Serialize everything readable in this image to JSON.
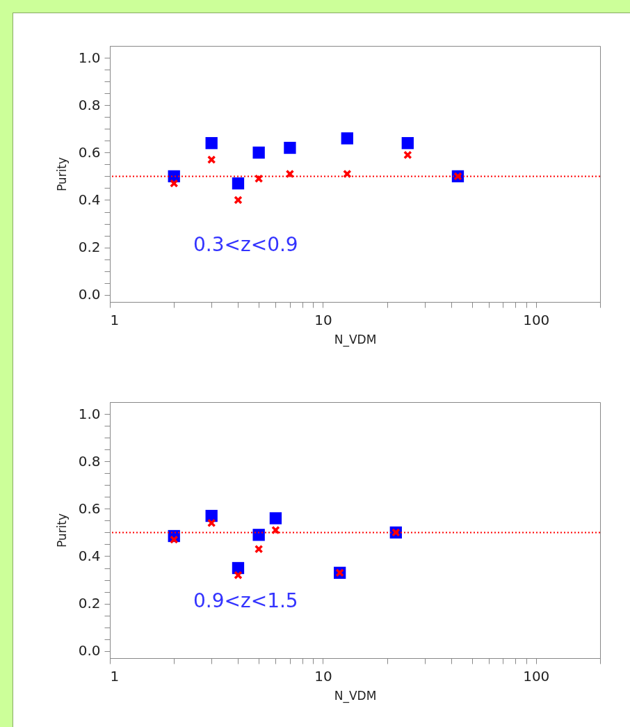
{
  "chart_data": [
    {
      "type": "scatter",
      "xlabel": "N_VDM",
      "ylabel": "Purity",
      "log": "x",
      "xlim": [
        1,
        200
      ],
      "ylim": [
        -0.03,
        1.05
      ],
      "xticks": [
        1,
        {
          "value": 2,
          "label": null
        },
        {
          "value": 3,
          "label": null
        },
        {
          "value": 4,
          "label": null
        },
        {
          "value": 5,
          "label": null
        },
        {
          "value": 6,
          "label": null
        },
        {
          "value": 7,
          "label": null
        },
        {
          "value": 8,
          "label": null
        },
        {
          "value": 9,
          "label": null
        },
        10,
        {
          "value": 20,
          "label": null
        },
        {
          "value": 30,
          "label": null
        },
        {
          "value": 40,
          "label": null
        },
        {
          "value": 50,
          "label": null
        },
        {
          "value": 60,
          "label": null
        },
        {
          "value": 70,
          "label": null
        },
        {
          "value": 80,
          "label": null
        },
        {
          "value": 90,
          "label": null
        },
        100,
        {
          "value": 200,
          "label": null
        }
      ],
      "yticks": [
        {
          "value": 0,
          "label": "0.0"
        },
        {
          "value": 0.05,
          "label": null
        },
        {
          "value": 0.1,
          "label": null
        },
        {
          "value": 0.15,
          "label": null
        },
        0.2,
        {
          "value": 0.25,
          "label": null
        },
        {
          "value": 0.3,
          "label": null
        },
        {
          "value": 0.35,
          "label": null
        },
        0.4,
        {
          "value": 0.45,
          "label": null
        },
        {
          "value": 0.5,
          "label": null
        },
        {
          "value": 0.55,
          "label": null
        },
        0.6,
        {
          "value": 0.65,
          "label": null
        },
        {
          "value": 0.7,
          "label": null
        },
        {
          "value": 0.75,
          "label": null
        },
        0.8,
        {
          "value": 0.85,
          "label": null
        },
        {
          "value": 0.9,
          "label": null
        },
        {
          "value": 0.95,
          "label": null
        },
        {
          "value": 1,
          "label": "1.0"
        }
      ],
      "series": [
        {
          "color": "#0000ff",
          "marker": "square",
          "x": [
            2,
            3,
            4,
            5,
            7,
            13,
            25,
            43
          ],
          "values": [
            0.5,
            0.64,
            0.47,
            0.6,
            0.62,
            0.66,
            0.64,
            0.5
          ]
        },
        {
          "color": "#ff0000",
          "marker": "cross",
          "x": [
            2,
            3,
            4,
            5,
            7,
            13,
            25,
            43
          ],
          "values": [
            0.47,
            0.57,
            0.4,
            0.49,
            0.51,
            0.51,
            0.59,
            0.5
          ]
        }
      ],
      "ref_lines": [
        {
          "axis": "y",
          "value": 0.5,
          "color": "#ff0000",
          "line_style": "dotted"
        }
      ],
      "annotations": [
        "0.3<z<0.9"
      ]
    },
    {
      "type": "scatter",
      "xlabel": "N_VDM",
      "ylabel": "Purity",
      "log": "x",
      "xlim": [
        1,
        200
      ],
      "ylim": [
        -0.03,
        1.05
      ],
      "xticks": [
        1,
        {
          "value": 2,
          "label": null
        },
        {
          "value": 3,
          "label": null
        },
        {
          "value": 4,
          "label": null
        },
        {
          "value": 5,
          "label": null
        },
        {
          "value": 6,
          "label": null
        },
        {
          "value": 7,
          "label": null
        },
        {
          "value": 8,
          "label": null
        },
        {
          "value": 9,
          "label": null
        },
        10,
        {
          "value": 20,
          "label": null
        },
        {
          "value": 30,
          "label": null
        },
        {
          "value": 40,
          "label": null
        },
        {
          "value": 50,
          "label": null
        },
        {
          "value": 60,
          "label": null
        },
        {
          "value": 70,
          "label": null
        },
        {
          "value": 80,
          "label": null
        },
        {
          "value": 90,
          "label": null
        },
        100,
        {
          "value": 200,
          "label": null
        }
      ],
      "yticks": [
        {
          "value": 0,
          "label": "0.0"
        },
        {
          "value": 0.05,
          "label": null
        },
        {
          "value": 0.1,
          "label": null
        },
        {
          "value": 0.15,
          "label": null
        },
        0.2,
        {
          "value": 0.25,
          "label": null
        },
        {
          "value": 0.3,
          "label": null
        },
        {
          "value": 0.35,
          "label": null
        },
        0.4,
        {
          "value": 0.45,
          "label": null
        },
        {
          "value": 0.5,
          "label": null
        },
        {
          "value": 0.55,
          "label": null
        },
        0.6,
        {
          "value": 0.65,
          "label": null
        },
        {
          "value": 0.7,
          "label": null
        },
        {
          "value": 0.75,
          "label": null
        },
        0.8,
        {
          "value": 0.85,
          "label": null
        },
        {
          "value": 0.9,
          "label": null
        },
        {
          "value": 0.95,
          "label": null
        },
        {
          "value": 1,
          "label": "1.0"
        }
      ],
      "series": [
        {
          "color": "#0000ff",
          "marker": "square",
          "x": [
            2,
            3,
            4,
            5,
            6,
            12,
            22
          ],
          "values": [
            0.485,
            0.57,
            0.35,
            0.49,
            0.56,
            0.33,
            0.5
          ]
        },
        {
          "color": "#ff0000",
          "marker": "cross",
          "x": [
            2,
            3,
            4,
            5,
            6,
            12,
            22
          ],
          "values": [
            0.47,
            0.54,
            0.32,
            0.43,
            0.51,
            0.33,
            0.5
          ]
        }
      ],
      "ref_lines": [
        {
          "axis": "y",
          "value": 0.5,
          "color": "#ff0000",
          "line_style": "dotted"
        }
      ],
      "annotations": [
        "0.9<z<1.5"
      ]
    }
  ]
}
